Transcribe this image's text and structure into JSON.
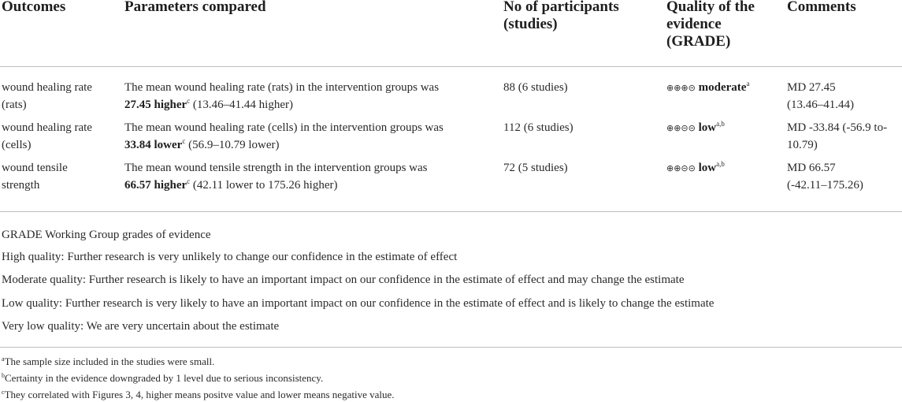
{
  "headers": {
    "outcomes": "Outcomes",
    "parameters": "Parameters compared",
    "participants_l1": "No of participants",
    "participants_l2": "(studies)",
    "quality_l1": "Quality of the",
    "quality_l2": "evidence",
    "quality_l3": "(GRADE)",
    "comments": "Comments"
  },
  "rows": [
    {
      "outcome_l1": "wound healing rate",
      "outcome_l2": "(rats)",
      "param_l1": "The mean wound healing rate (rats) in the intervention groups was",
      "param_bold": "27.45 higher",
      "param_sup": "c",
      "param_rest": " (13.46–41.44 higher)",
      "participants": "88 (6 studies)",
      "quality_symbol": "⊕⊕⊕⊝",
      "quality_word": "moderate",
      "quality_sup": "a",
      "comment_l1": "MD 27.45",
      "comment_l2": "(13.46–41.44)"
    },
    {
      "outcome_l1": "wound healing rate",
      "outcome_l2": "(cells)",
      "param_l1": "The mean wound healing rate (cells) in the intervention groups was",
      "param_bold": "33.84 lower",
      "param_sup": "c",
      "param_rest": " (56.9–10.79 lower)",
      "participants": "112 (6 studies)",
      "quality_symbol": "⊕⊕⊝⊝",
      "quality_word": "low",
      "quality_sup": "a,b",
      "comment_l1": "MD -33.84 (-56.9 to-",
      "comment_l2": "10.79)"
    },
    {
      "outcome_l1": "wound tensile",
      "outcome_l2": "strength",
      "param_l1": "The mean wound tensile strength in the intervention groups was",
      "param_bold": "66.57 higher",
      "param_sup": "c",
      "param_rest": " (42.11 lower to 175.26 higher)",
      "participants": "72 (5 studies)",
      "quality_symbol": "⊕⊕⊝⊝",
      "quality_word": "low",
      "quality_sup": "a,b",
      "comment_l1": "MD 66.57",
      "comment_l2": "(-42.11–175.26)"
    }
  ],
  "grade_notes": [
    "GRADE Working Group grades of evidence",
    "High quality: Further research is very unlikely to change our confidence in the estimate of effect",
    "Moderate quality: Further research is likely to have an important impact on our confidence in the estimate of effect and may change the estimate",
    "Low quality: Further research is very likely to have an important impact on our confidence in the estimate of effect and is likely to change the estimate",
    "Very low quality: We are very uncertain about the estimate"
  ],
  "footnotes": [
    {
      "mark": "a",
      "text": "The sample size included in the studies were small."
    },
    {
      "mark": "b",
      "text": "Certainty in the evidence downgraded by 1 level due to serious inconsistency."
    },
    {
      "mark": "c",
      "text": "They correlated with Figures 3, 4, higher means positve value and lower means negative value."
    }
  ]
}
